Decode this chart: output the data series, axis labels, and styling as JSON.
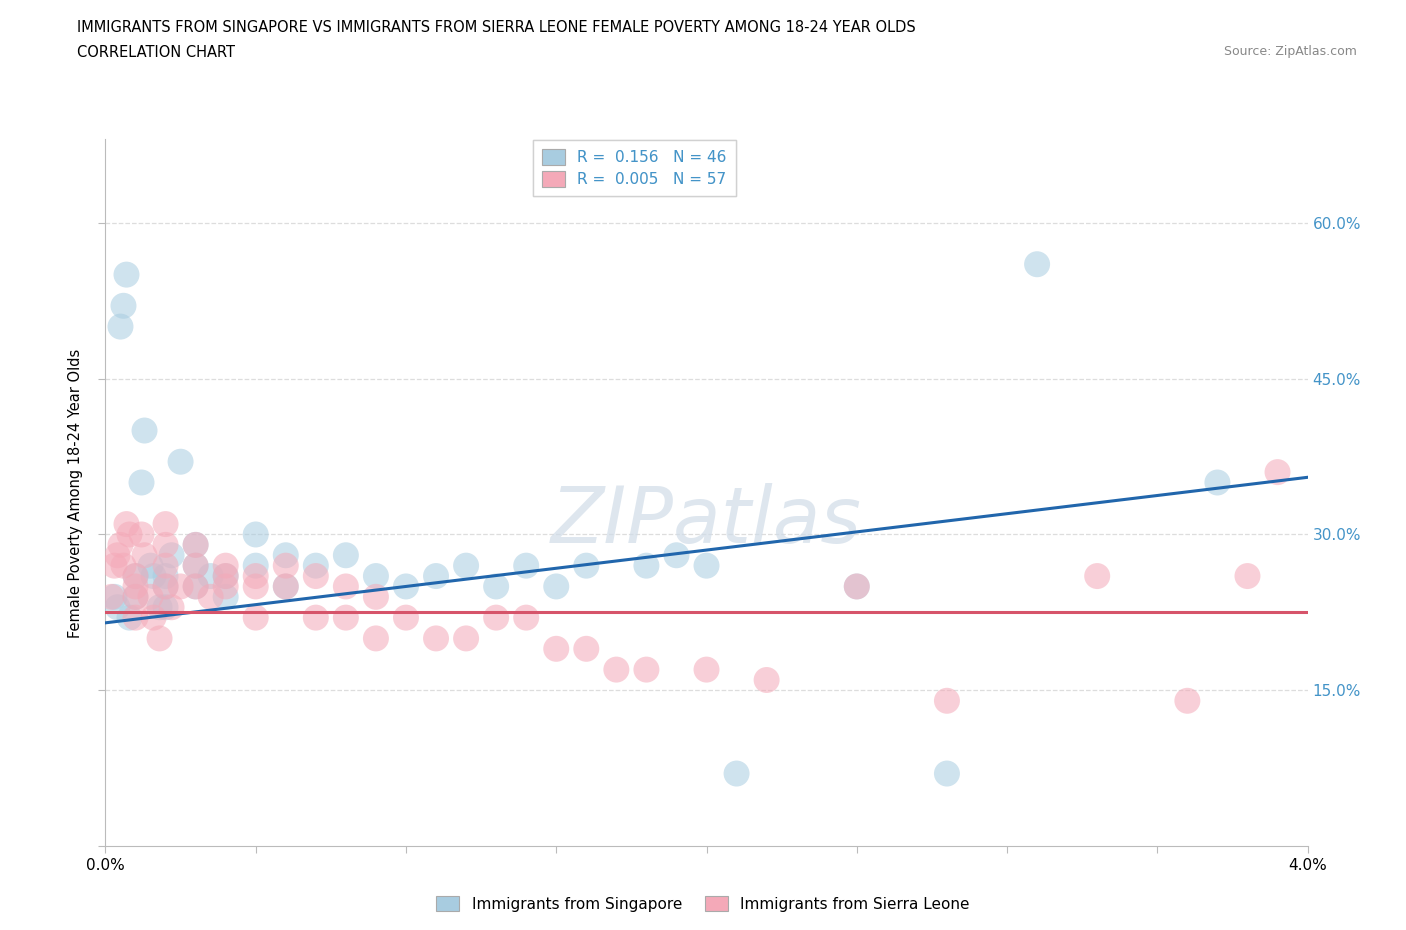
{
  "title_line1": "IMMIGRANTS FROM SINGAPORE VS IMMIGRANTS FROM SIERRA LEONE FEMALE POVERTY AMONG 18-24 YEAR OLDS",
  "title_line2": "CORRELATION CHART",
  "source_text": "Source: ZipAtlas.com",
  "ylabel": "Female Poverty Among 18-24 Year Olds",
  "xlim": [
    0.0,
    0.04
  ],
  "ylim": [
    0.0,
    0.68
  ],
  "yticks": [
    0.0,
    0.15,
    0.3,
    0.45,
    0.6
  ],
  "ytick_labels_right": [
    "15.0%",
    "30.0%",
    "45.0%",
    "60.0%"
  ],
  "xtick_left_label": "0.0%",
  "xtick_right_label": "4.0%",
  "color_singapore": "#a8cce0",
  "color_sierra_leone": "#f4a9b8",
  "trendline_singapore_color": "#2166ac",
  "trendline_sierra_leone_color": "#d6546a",
  "watermark_text": "ZIPatlas",
  "legend_r_singapore": "0.156",
  "legend_n_singapore": "46",
  "legend_r_sierra_leone": "0.005",
  "legend_n_sierra_leone": "57",
  "legend_label_singapore": "Immigrants from Singapore",
  "legend_label_sierra_leone": "Immigrants from Sierra Leone",
  "trend_blue_x0": 0.0,
  "trend_blue_y0": 0.215,
  "trend_blue_x1": 0.04,
  "trend_blue_y1": 0.355,
  "trend_pink_x0": 0.0,
  "trend_pink_y0": 0.225,
  "trend_pink_x1": 0.04,
  "trend_pink_y1": 0.225,
  "sing_x": [
    0.0003,
    0.0004,
    0.0005,
    0.0006,
    0.0007,
    0.0008,
    0.001,
    0.001,
    0.0012,
    0.0013,
    0.0015,
    0.0016,
    0.0018,
    0.002,
    0.002,
    0.002,
    0.0022,
    0.0025,
    0.003,
    0.003,
    0.003,
    0.0035,
    0.004,
    0.004,
    0.005,
    0.005,
    0.006,
    0.006,
    0.007,
    0.008,
    0.009,
    0.01,
    0.011,
    0.012,
    0.013,
    0.014,
    0.015,
    0.016,
    0.018,
    0.019,
    0.02,
    0.021,
    0.025,
    0.028,
    0.031,
    0.037
  ],
  "sing_y": [
    0.24,
    0.23,
    0.5,
    0.52,
    0.55,
    0.22,
    0.24,
    0.26,
    0.35,
    0.4,
    0.27,
    0.26,
    0.23,
    0.26,
    0.25,
    0.23,
    0.28,
    0.37,
    0.29,
    0.27,
    0.25,
    0.26,
    0.26,
    0.24,
    0.3,
    0.27,
    0.28,
    0.25,
    0.27,
    0.28,
    0.26,
    0.25,
    0.26,
    0.27,
    0.25,
    0.27,
    0.25,
    0.27,
    0.27,
    0.28,
    0.27,
    0.07,
    0.25,
    0.07,
    0.56,
    0.35
  ],
  "sier_x": [
    0.0002,
    0.0003,
    0.0004,
    0.0005,
    0.0006,
    0.0007,
    0.0008,
    0.001,
    0.001,
    0.001,
    0.001,
    0.0012,
    0.0013,
    0.0015,
    0.0016,
    0.0018,
    0.002,
    0.002,
    0.002,
    0.002,
    0.0022,
    0.0025,
    0.003,
    0.003,
    0.003,
    0.0035,
    0.004,
    0.004,
    0.004,
    0.005,
    0.005,
    0.005,
    0.006,
    0.006,
    0.007,
    0.007,
    0.008,
    0.008,
    0.009,
    0.009,
    0.01,
    0.011,
    0.012,
    0.013,
    0.014,
    0.015,
    0.016,
    0.017,
    0.018,
    0.02,
    0.022,
    0.025,
    0.028,
    0.033,
    0.036,
    0.038,
    0.039
  ],
  "sier_y": [
    0.24,
    0.27,
    0.28,
    0.29,
    0.27,
    0.31,
    0.3,
    0.26,
    0.25,
    0.24,
    0.22,
    0.3,
    0.28,
    0.24,
    0.22,
    0.2,
    0.31,
    0.29,
    0.27,
    0.25,
    0.23,
    0.25,
    0.29,
    0.27,
    0.25,
    0.24,
    0.27,
    0.26,
    0.25,
    0.26,
    0.25,
    0.22,
    0.27,
    0.25,
    0.26,
    0.22,
    0.25,
    0.22,
    0.24,
    0.2,
    0.22,
    0.2,
    0.2,
    0.22,
    0.22,
    0.19,
    0.19,
    0.17,
    0.17,
    0.17,
    0.16,
    0.25,
    0.14,
    0.26,
    0.14,
    0.26,
    0.36
  ]
}
